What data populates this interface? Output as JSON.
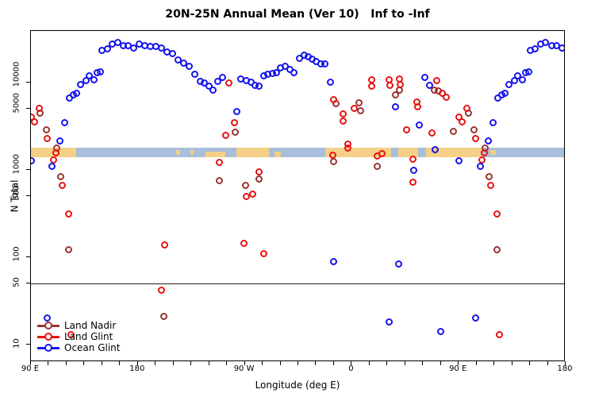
{
  "title": "20N-25N Annual Mean (Ver 10)   Inf to -Inf",
  "chart_data": {
    "type": "scatter",
    "xlabel": "Longitude (deg E)",
    "ylabel": "N Total",
    "x_axis": {
      "range_deg": [
        -270,
        180
      ],
      "major_ticks": [
        {
          "pos": -270,
          "label": "90 E"
        },
        {
          "pos": -180,
          "label": "180"
        },
        {
          "pos": -90,
          "label": "90 W"
        },
        {
          "pos": 0,
          "label": "0"
        },
        {
          "pos": 90,
          "label": "90 E"
        },
        {
          "pos": 180,
          "label": "180"
        }
      ],
      "minor_tick_step_deg": 15
    },
    "y_axis": {
      "scale": "log",
      "range": [
        6.3,
        39000
      ],
      "ticks": [
        {
          "value": 10,
          "label": "10"
        },
        {
          "value": 50,
          "label": "50"
        },
        {
          "value": 100,
          "label": "100"
        },
        {
          "value": 500,
          "label": "500"
        },
        {
          "value": 1000,
          "label": "1000"
        },
        {
          "value": 5000,
          "label": "5000"
        },
        {
          "value": 10000,
          "label": "10000"
        }
      ]
    },
    "reference_line_y": 50,
    "map_band": {
      "n_range": [
        1400,
        1805
      ],
      "ocean_color": "#a9bed9",
      "land_color": "#f5d086",
      "land_segments": [
        {
          "from": -270,
          "to": -232,
          "part": "full"
        },
        {
          "from": -148,
          "to": -144.5,
          "part": "mid"
        },
        {
          "from": -135.5,
          "to": -133,
          "part": "mid"
        },
        {
          "from": -123.3,
          "to": -106.7,
          "part": "bottom"
        },
        {
          "from": -97.3,
          "to": -70,
          "part": "full"
        },
        {
          "from": -65,
          "to": -60,
          "part": "bottom"
        },
        {
          "from": -22,
          "to": 33.3,
          "part": "full"
        },
        {
          "from": 39.3,
          "to": 56,
          "part": "full"
        },
        {
          "from": 62.7,
          "to": 110,
          "part": "full"
        },
        {
          "from": 116.7,
          "to": 121.3,
          "part": "mid"
        }
      ]
    },
    "series": [
      {
        "name": "Land Nadir",
        "color": "#993431",
        "points": [
          [
            -262.0,
            4500
          ],
          [
            -257.3,
            2900
          ],
          [
            -248.0,
            1760
          ],
          [
            -244.7,
            840
          ],
          [
            -238.0,
            123
          ],
          [
            -158.0,
            21
          ],
          [
            -111.3,
            760
          ],
          [
            -98.0,
            2720
          ],
          [
            -89.3,
            660
          ],
          [
            -78.0,
            780
          ],
          [
            -15.3,
            1240
          ],
          [
            -13.3,
            5700
          ],
          [
            6.0,
            5820
          ],
          [
            7.3,
            4720
          ],
          [
            21.3,
            1090
          ],
          [
            36.7,
            7300
          ],
          [
            40.0,
            8280
          ],
          [
            69.3,
            8280
          ],
          [
            72.7,
            7960
          ],
          [
            85.3,
            2780
          ],
          [
            98.0,
            4500
          ],
          [
            102.7,
            2900
          ],
          [
            112.0,
            1760
          ],
          [
            115.3,
            840
          ],
          [
            122.0,
            123
          ]
        ]
      },
      {
        "name": "Land Glint",
        "color": "#e81212",
        "points": [
          [
            -270.0,
            4000
          ],
          [
            -267.3,
            3580
          ],
          [
            -263.3,
            5100
          ],
          [
            -256.0,
            2300
          ],
          [
            -250.7,
            1310
          ],
          [
            -248.7,
            1580
          ],
          [
            -243.3,
            670
          ],
          [
            -238.0,
            310
          ],
          [
            -236.0,
            13
          ],
          [
            -160.0,
            42
          ],
          [
            -157.3,
            137
          ],
          [
            -111.3,
            1210
          ],
          [
            -106.0,
            2500
          ],
          [
            -103.3,
            9900
          ],
          [
            -98.7,
            3500
          ],
          [
            -90.7,
            143
          ],
          [
            -88.7,
            500
          ],
          [
            -83.3,
            524
          ],
          [
            -78.0,
            940
          ],
          [
            -74.0,
            111
          ],
          [
            -16.0,
            1470
          ],
          [
            -15.3,
            6430
          ],
          [
            -7.3,
            4330
          ],
          [
            -7.3,
            3660
          ],
          [
            -3.3,
            1990
          ],
          [
            -3.3,
            1760
          ],
          [
            2.0,
            5100
          ],
          [
            16.7,
            10700
          ],
          [
            16.7,
            9100
          ],
          [
            21.3,
            1430
          ],
          [
            25.3,
            1520
          ],
          [
            31.3,
            10700
          ],
          [
            32.0,
            9300
          ],
          [
            40.0,
            11000
          ],
          [
            40.7,
            9500
          ],
          [
            46.0,
            2890
          ],
          [
            51.3,
            1340
          ],
          [
            51.3,
            730
          ],
          [
            54.7,
            5940
          ],
          [
            55.3,
            5240
          ],
          [
            67.3,
            2670
          ],
          [
            71.3,
            10500
          ],
          [
            76.0,
            7500
          ],
          [
            79.3,
            6850
          ],
          [
            90.0,
            4000
          ],
          [
            92.7,
            3580
          ],
          [
            96.7,
            5100
          ],
          [
            104.0,
            2300
          ],
          [
            109.3,
            1310
          ],
          [
            111.3,
            1580
          ],
          [
            116.7,
            670
          ],
          [
            122.0,
            310
          ],
          [
            124.0,
            13
          ]
        ]
      },
      {
        "name": "Ocean Glint",
        "color": "#1414ee",
        "points": [
          [
            -270.0,
            1280
          ],
          [
            -256.0,
            20
          ],
          [
            -252.0,
            1110
          ],
          [
            -245.3,
            2130
          ],
          [
            -241.3,
            3500
          ],
          [
            -237.3,
            6580
          ],
          [
            -234.0,
            7180
          ],
          [
            -231.3,
            7500
          ],
          [
            -228.0,
            9500
          ],
          [
            -223.3,
            10500
          ],
          [
            -220.7,
            11900
          ],
          [
            -216.7,
            10700
          ],
          [
            -214.0,
            12900
          ],
          [
            -211.3,
            13200
          ],
          [
            -210.0,
            23200
          ],
          [
            -205.3,
            24200
          ],
          [
            -201.3,
            27400
          ],
          [
            -196.7,
            28600
          ],
          [
            -192.0,
            26300
          ],
          [
            -188.0,
            26300
          ],
          [
            -183.3,
            25100
          ],
          [
            -178.7,
            27400
          ],
          [
            -174.0,
            26300
          ],
          [
            -169.3,
            25700
          ],
          [
            -164.7,
            25700
          ],
          [
            -160.0,
            24700
          ],
          [
            -155.3,
            22200
          ],
          [
            -150.7,
            21300
          ],
          [
            -146.0,
            18100
          ],
          [
            -141.3,
            16700
          ],
          [
            -136.7,
            15400
          ],
          [
            -132.0,
            12500
          ],
          [
            -127.3,
            10300
          ],
          [
            -124.0,
            9900
          ],
          [
            -120.0,
            9100
          ],
          [
            -116.7,
            8200
          ],
          [
            -112.7,
            10300
          ],
          [
            -108.7,
            11400
          ],
          [
            -96.7,
            4640
          ],
          [
            -93.3,
            11000
          ],
          [
            -88.7,
            10500
          ],
          [
            -84.7,
            10100
          ],
          [
            -81.3,
            9300
          ],
          [
            -78.0,
            9100
          ],
          [
            -74.0,
            11900
          ],
          [
            -70.7,
            12400
          ],
          [
            -66.7,
            12700
          ],
          [
            -63.3,
            12900
          ],
          [
            -60.0,
            14700
          ],
          [
            -56.0,
            15400
          ],
          [
            -52.0,
            14100
          ],
          [
            -48.7,
            12900
          ],
          [
            -44.0,
            18800
          ],
          [
            -40.0,
            20400
          ],
          [
            -36.7,
            19600
          ],
          [
            -33.3,
            18400
          ],
          [
            -30.0,
            17300
          ],
          [
            -26.0,
            16300
          ],
          [
            -22.7,
            16300
          ],
          [
            -18.0,
            10100
          ],
          [
            -15.3,
            90
          ],
          [
            31.3,
            18
          ],
          [
            36.7,
            5240
          ],
          [
            39.3,
            83
          ],
          [
            52.0,
            1000
          ],
          [
            56.7,
            3240
          ],
          [
            61.3,
            11400
          ],
          [
            65.3,
            9300
          ],
          [
            70.0,
            1720
          ],
          [
            74.7,
            14
          ],
          [
            90.0,
            1280
          ],
          [
            104.0,
            20
          ],
          [
            108.0,
            1110
          ],
          [
            114.7,
            2130
          ],
          [
            118.7,
            3500
          ],
          [
            122.7,
            6580
          ],
          [
            126.0,
            7180
          ],
          [
            128.7,
            7500
          ],
          [
            132.0,
            9500
          ],
          [
            136.7,
            10500
          ],
          [
            139.3,
            11900
          ],
          [
            143.3,
            10700
          ],
          [
            146.0,
            12900
          ],
          [
            148.7,
            13200
          ],
          [
            150.0,
            23200
          ],
          [
            154.0,
            24200
          ],
          [
            158.7,
            27400
          ],
          [
            163.3,
            28600
          ],
          [
            168.0,
            26300
          ],
          [
            172.0,
            26300
          ],
          [
            176.7,
            25100
          ]
        ]
      }
    ],
    "legend": {
      "position": "bottom-left"
    }
  }
}
